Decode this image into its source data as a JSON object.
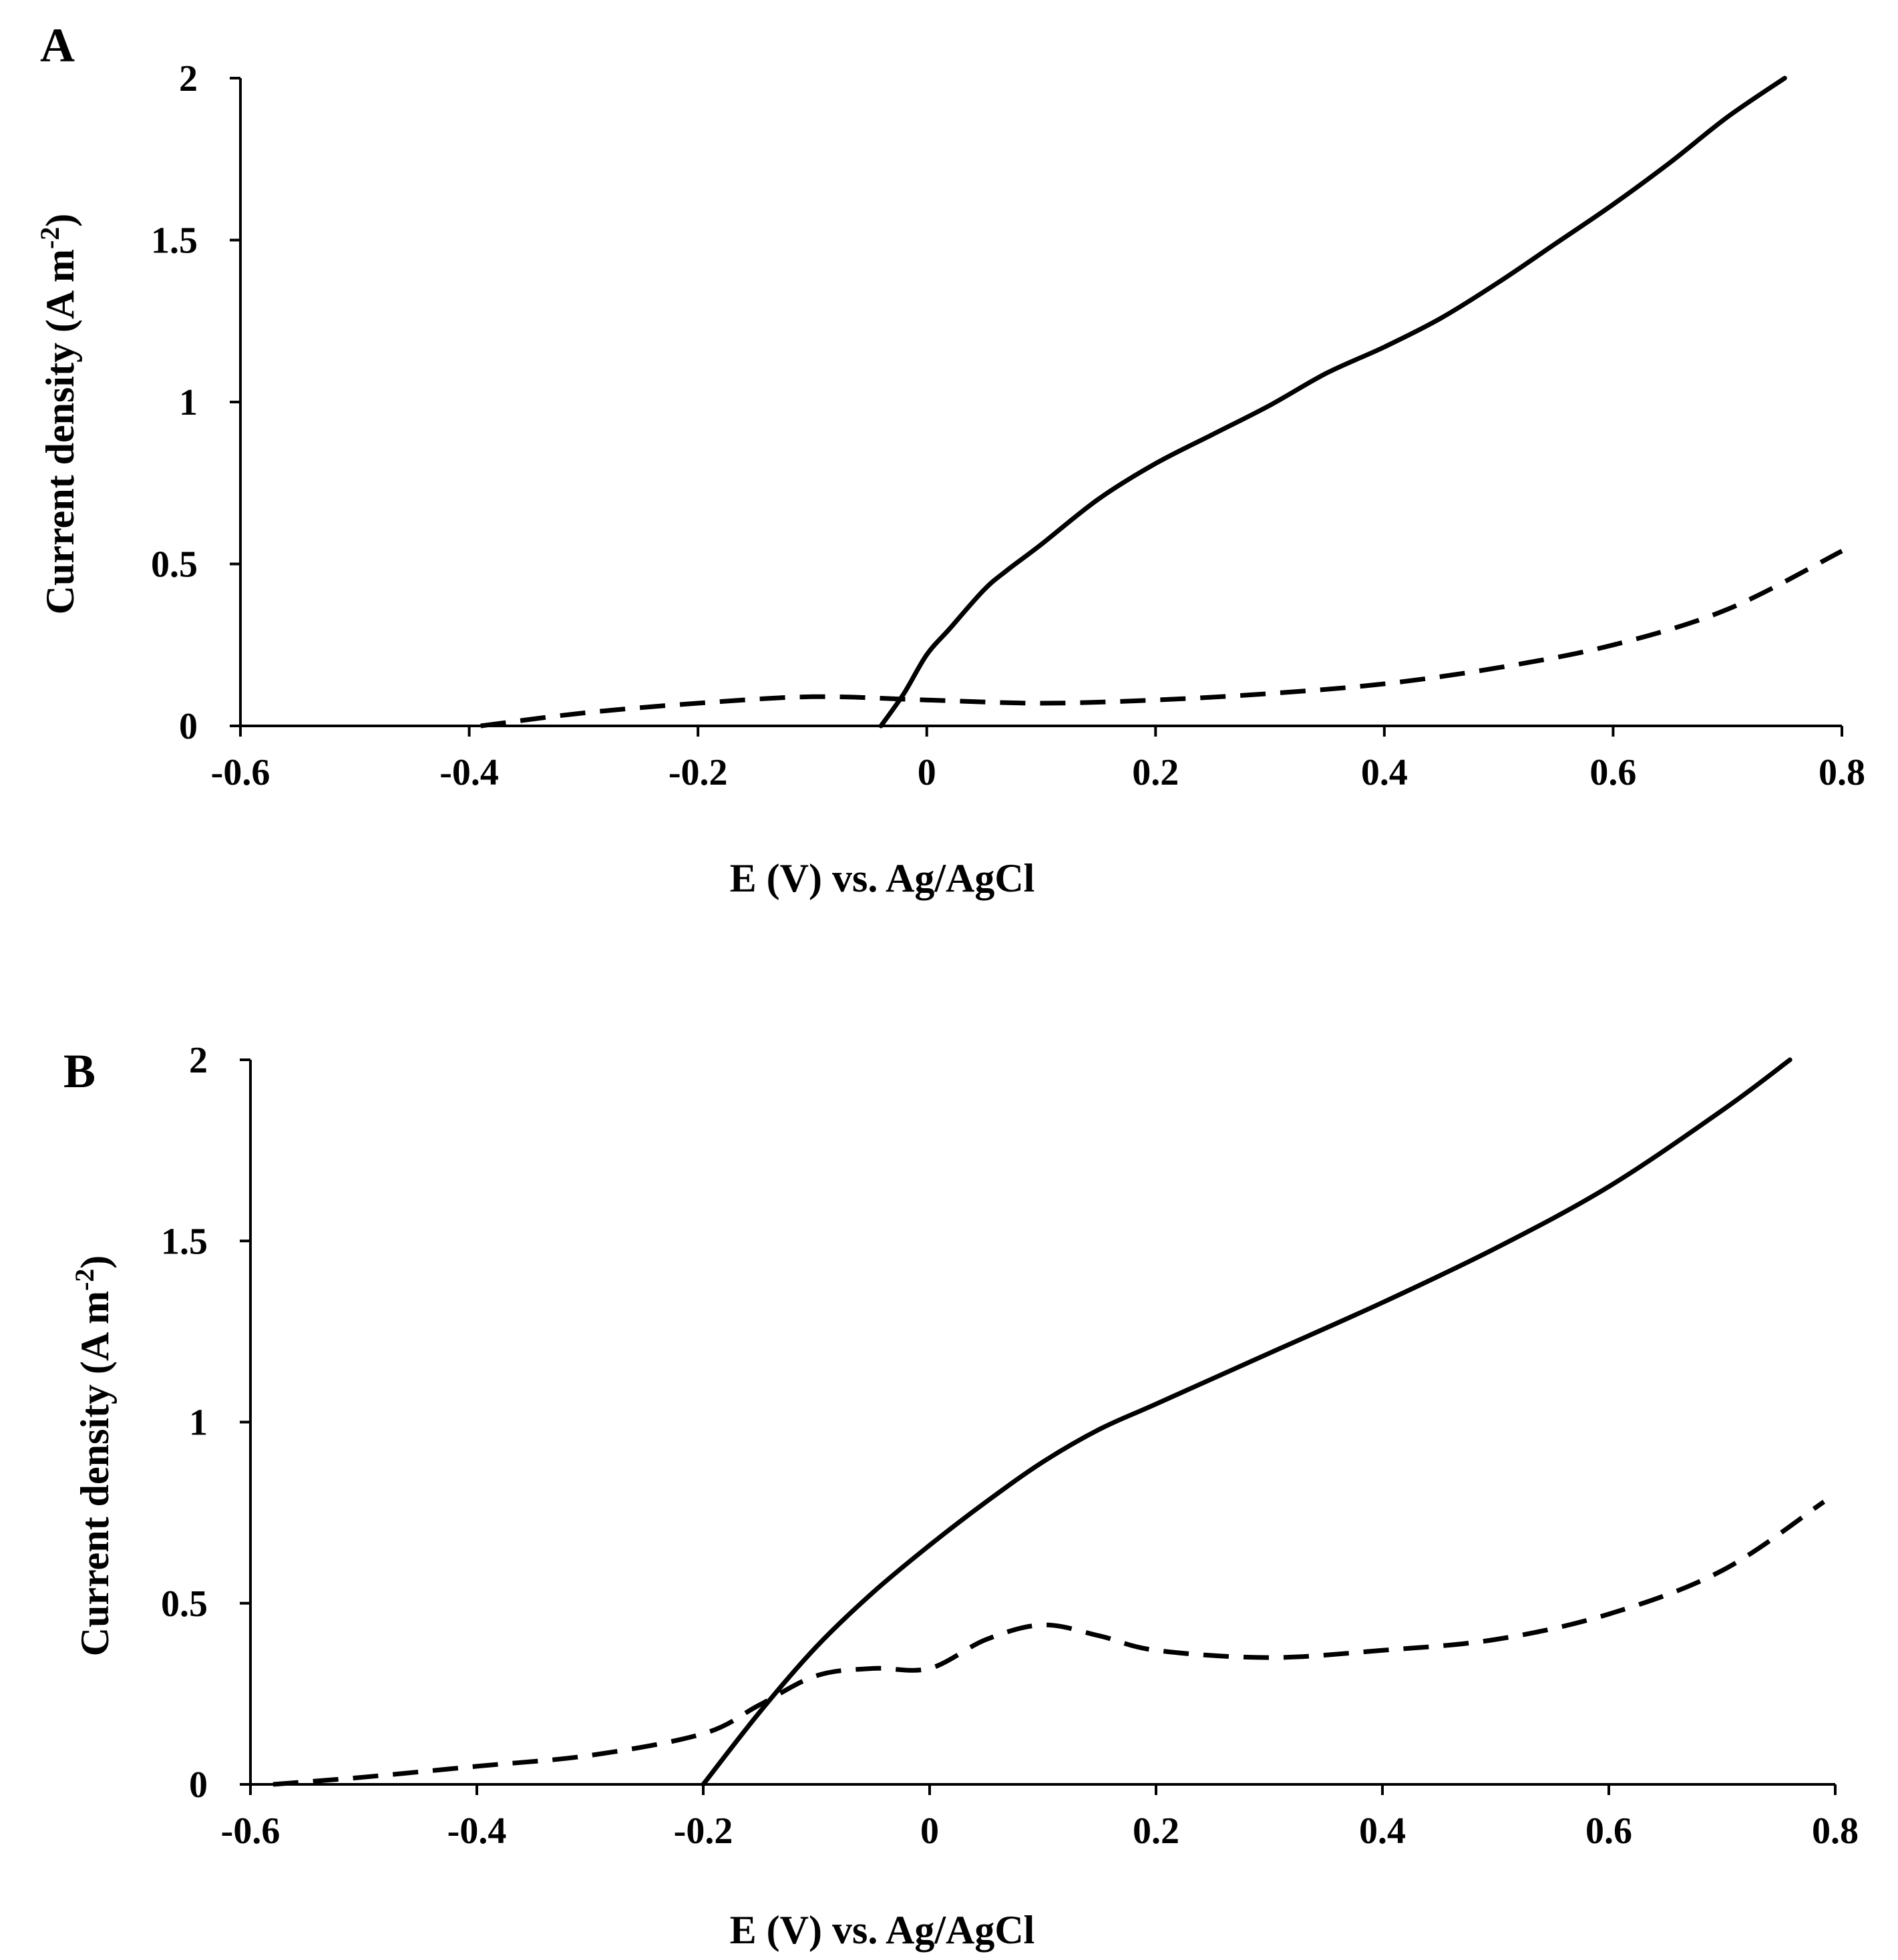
{
  "chart_data": [
    {
      "panel": "A",
      "type": "line",
      "title": "",
      "xlabel": "E (V) vs. Ag/AgCl",
      "ylabel_main": "Current density (A m",
      "ylabel_sup": "-2",
      "ylabel_end": ")",
      "xlim": [
        -0.6,
        0.8
      ],
      "ylim": [
        0,
        2
      ],
      "xticks": [
        -0.6,
        -0.4,
        -0.2,
        0,
        0.2,
        0.4,
        0.6,
        0.8
      ],
      "xtick_labels": [
        "-0.6",
        "-0.4",
        "-0.2",
        "0",
        "0.2",
        "0.4",
        "0.6",
        "0.8"
      ],
      "yticks": [
        0,
        0.5,
        1,
        1.5,
        2
      ],
      "ytick_labels": [
        "0",
        "0.5",
        "1",
        "1.5",
        "2"
      ],
      "grid": false,
      "series": [
        {
          "name": "solid",
          "style": "solid",
          "x": [
            -0.04,
            -0.02,
            0,
            0.02,
            0.05,
            0.07,
            0.1,
            0.15,
            0.2,
            0.25,
            0.3,
            0.35,
            0.4,
            0.45,
            0.5,
            0.55,
            0.6,
            0.65,
            0.7,
            0.75
          ],
          "y": [
            0,
            0.1,
            0.22,
            0.3,
            0.42,
            0.48,
            0.56,
            0.7,
            0.81,
            0.9,
            0.99,
            1.09,
            1.17,
            1.26,
            1.37,
            1.49,
            1.61,
            1.74,
            1.88,
            2.0
          ]
        },
        {
          "name": "dashed",
          "style": "dashed",
          "x": [
            -0.39,
            -0.3,
            -0.2,
            -0.1,
            0,
            0.1,
            0.2,
            0.3,
            0.4,
            0.5,
            0.6,
            0.7,
            0.8
          ],
          "y": [
            0,
            0.04,
            0.07,
            0.09,
            0.08,
            0.07,
            0.08,
            0.1,
            0.13,
            0.18,
            0.25,
            0.36,
            0.54
          ]
        }
      ]
    },
    {
      "panel": "B",
      "type": "line",
      "title": "",
      "xlabel": "E (V) vs. Ag/AgCl",
      "ylabel_main": "Current density (A m",
      "ylabel_sup": "-2",
      "ylabel_end": ")",
      "xlim": [
        -0.6,
        0.8
      ],
      "ylim": [
        0,
        2
      ],
      "xticks": [
        -0.6,
        -0.4,
        -0.2,
        0,
        0.2,
        0.4,
        0.6,
        0.8
      ],
      "xtick_labels": [
        "-0.6",
        "-0.4",
        "-0.2",
        "0",
        "0.2",
        "0.4",
        "0.6",
        "0.8"
      ],
      "yticks": [
        0,
        0.5,
        1,
        1.5,
        2
      ],
      "ytick_labels": [
        "0",
        "0.5",
        "1",
        "1.5",
        "2"
      ],
      "grid": false,
      "series": [
        {
          "name": "solid",
          "style": "solid",
          "x": [
            -0.2,
            -0.15,
            -0.1,
            -0.05,
            0,
            0.05,
            0.1,
            0.15,
            0.2,
            0.3,
            0.4,
            0.5,
            0.6,
            0.7,
            0.76
          ],
          "y": [
            0,
            0.2,
            0.38,
            0.53,
            0.66,
            0.78,
            0.89,
            0.98,
            1.05,
            1.19,
            1.33,
            1.48,
            1.65,
            1.86,
            2.0
          ]
        },
        {
          "name": "dashed",
          "style": "dashed",
          "x": [
            -0.58,
            -0.5,
            -0.4,
            -0.3,
            -0.2,
            -0.15,
            -0.1,
            -0.05,
            0,
            0.05,
            0.1,
            0.15,
            0.2,
            0.3,
            0.4,
            0.5,
            0.6,
            0.7,
            0.79
          ],
          "y": [
            0,
            0.02,
            0.05,
            0.08,
            0.14,
            0.22,
            0.3,
            0.32,
            0.32,
            0.4,
            0.44,
            0.41,
            0.37,
            0.35,
            0.37,
            0.4,
            0.47,
            0.59,
            0.78
          ]
        }
      ]
    }
  ]
}
